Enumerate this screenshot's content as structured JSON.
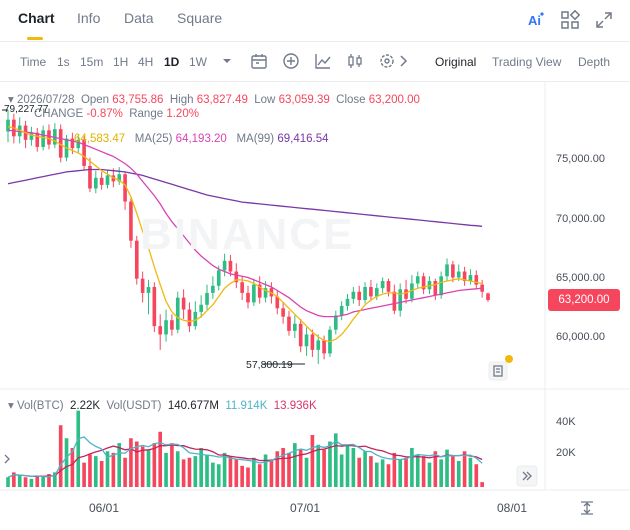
{
  "tabs": [
    {
      "label": "Chart",
      "active": true
    },
    {
      "label": "Info",
      "active": false
    },
    {
      "label": "Data",
      "active": false
    },
    {
      "label": "Square",
      "active": false
    }
  ],
  "top_icons": [
    "ai-icon",
    "grid-icon",
    "expand-icon"
  ],
  "toolbar": {
    "timeframes": [
      {
        "label": "Time",
        "active": false
      },
      {
        "label": "1s",
        "active": false
      },
      {
        "label": "15m",
        "active": false
      },
      {
        "label": "1H",
        "active": false
      },
      {
        "label": "4H",
        "active": false
      },
      {
        "label": "1D",
        "active": true
      },
      {
        "label": "1W",
        "active": false
      }
    ],
    "views": [
      {
        "label": "Original",
        "active": true
      },
      {
        "label": "Trading View",
        "active": false
      },
      {
        "label": "Depth",
        "active": false
      }
    ]
  },
  "ohlc": {
    "date": "2026/07/28",
    "open_label": "Open",
    "open": "63,755.86",
    "high_label": "High",
    "high": "63,827.49",
    "low_label": "Low",
    "low": "63,059.39",
    "close_label": "Close",
    "close": "63,200.00",
    "change_label": "CHANGE",
    "change": "-0.87%",
    "range_label": "Range",
    "range": "1.20%"
  },
  "ma": {
    "ma7_value": "64,583.47",
    "ma25_label": "MA(25)",
    "ma25_value": "64,193.20",
    "ma99_label": "MA(99)",
    "ma99_value": "69,416.54"
  },
  "price_axis": [
    "75,000.00",
    "70,000.00",
    "65,000.00",
    "60,000.00"
  ],
  "current_price": "63,200.00",
  "annotations": {
    "high_mark": "79,227.77",
    "low_mark": "57,800.19"
  },
  "watermark": "BINANCE",
  "volume": {
    "label_btc": "Vol(BTC)",
    "btc": "2.22K",
    "label_usdt": "Vol(USDT)",
    "usdt": "140.677M",
    "ma1": "11.914K",
    "ma2": "13.936K",
    "axis": [
      "40K",
      "20K"
    ]
  },
  "dates": [
    "06/01",
    "07/01",
    "08/01"
  ],
  "colors": {
    "up": "#2ebd85",
    "down": "#f6465d",
    "accent": "#f0b90b",
    "ma7": "#f0b90b",
    "ma25": "#d943b4",
    "ma99": "#7a37a6",
    "vol_ma1": "#4fb4c8",
    "vol_ma2": "#c2255c"
  },
  "chart_data": {
    "type": "candlestick",
    "candles": [
      {
        "o": 77400,
        "c": 78400,
        "h": 79230,
        "l": 76500
      },
      {
        "o": 78400,
        "c": 77000,
        "h": 78900,
        "l": 76400
      },
      {
        "o": 77000,
        "c": 77900,
        "h": 78600,
        "l": 76400
      },
      {
        "o": 77900,
        "c": 76700,
        "h": 78300,
        "l": 76000
      },
      {
        "o": 76700,
        "c": 77300,
        "h": 77800,
        "l": 76200
      },
      {
        "o": 77300,
        "c": 76100,
        "h": 77700,
        "l": 75700
      },
      {
        "o": 76100,
        "c": 77500,
        "h": 77900,
        "l": 75800
      },
      {
        "o": 77500,
        "c": 76300,
        "h": 78000,
        "l": 75900
      },
      {
        "o": 76300,
        "c": 77600,
        "h": 78100,
        "l": 76000
      },
      {
        "o": 77600,
        "c": 75200,
        "h": 78000,
        "l": 74800
      },
      {
        "o": 75200,
        "c": 76800,
        "h": 77100,
        "l": 74900
      },
      {
        "o": 76800,
        "c": 76000,
        "h": 77300,
        "l": 75500
      },
      {
        "o": 76000,
        "c": 76700,
        "h": 77100,
        "l": 75600
      },
      {
        "o": 76700,
        "c": 74500,
        "h": 77000,
        "l": 74200
      },
      {
        "o": 74500,
        "c": 72600,
        "h": 75200,
        "l": 72300
      },
      {
        "o": 72600,
        "c": 73500,
        "h": 74100,
        "l": 72200
      },
      {
        "o": 73500,
        "c": 72900,
        "h": 74000,
        "l": 72500
      },
      {
        "o": 72900,
        "c": 73700,
        "h": 74200,
        "l": 72600
      },
      {
        "o": 73700,
        "c": 73200,
        "h": 74300,
        "l": 72700
      },
      {
        "o": 73200,
        "c": 73800,
        "h": 74400,
        "l": 72900
      },
      {
        "o": 73800,
        "c": 71500,
        "h": 74000,
        "l": 70800
      },
      {
        "o": 71500,
        "c": 68200,
        "h": 71800,
        "l": 67600
      },
      {
        "o": 68200,
        "c": 65000,
        "h": 68600,
        "l": 64500
      },
      {
        "o": 65000,
        "c": 63800,
        "h": 65600,
        "l": 63000
      },
      {
        "o": 63800,
        "c": 64300,
        "h": 64900,
        "l": 62000
      },
      {
        "o": 64300,
        "c": 61000,
        "h": 64700,
        "l": 60500
      },
      {
        "o": 61000,
        "c": 60300,
        "h": 62000,
        "l": 59000
      },
      {
        "o": 60300,
        "c": 61500,
        "h": 62400,
        "l": 59700
      },
      {
        "o": 61500,
        "c": 60700,
        "h": 62000,
        "l": 60200
      },
      {
        "o": 60700,
        "c": 63400,
        "h": 63900,
        "l": 60400
      },
      {
        "o": 63400,
        "c": 62400,
        "h": 64100,
        "l": 61600
      },
      {
        "o": 62400,
        "c": 61000,
        "h": 63000,
        "l": 60500
      },
      {
        "o": 61000,
        "c": 62200,
        "h": 63100,
        "l": 60700
      },
      {
        "o": 62200,
        "c": 62800,
        "h": 63600,
        "l": 61700
      },
      {
        "o": 62800,
        "c": 63800,
        "h": 64500,
        "l": 62400
      },
      {
        "o": 63800,
        "c": 64400,
        "h": 65200,
        "l": 63300
      },
      {
        "o": 64400,
        "c": 65700,
        "h": 66100,
        "l": 64000
      },
      {
        "o": 65700,
        "c": 66500,
        "h": 67100,
        "l": 65200
      },
      {
        "o": 66500,
        "c": 65600,
        "h": 67000,
        "l": 65200
      },
      {
        "o": 65600,
        "c": 64700,
        "h": 66300,
        "l": 64200
      },
      {
        "o": 64700,
        "c": 63800,
        "h": 65200,
        "l": 63200
      },
      {
        "o": 63800,
        "c": 63000,
        "h": 64400,
        "l": 62500
      },
      {
        "o": 63000,
        "c": 64500,
        "h": 65000,
        "l": 62700
      },
      {
        "o": 64500,
        "c": 63400,
        "h": 65200,
        "l": 62900
      },
      {
        "o": 63400,
        "c": 64200,
        "h": 64800,
        "l": 63000
      },
      {
        "o": 64200,
        "c": 63500,
        "h": 64700,
        "l": 62900
      },
      {
        "o": 63500,
        "c": 62500,
        "h": 64000,
        "l": 62000
      },
      {
        "o": 62500,
        "c": 61800,
        "h": 63000,
        "l": 61200
      },
      {
        "o": 61800,
        "c": 60600,
        "h": 62300,
        "l": 60200
      },
      {
        "o": 60600,
        "c": 61200,
        "h": 61900,
        "l": 60000
      },
      {
        "o": 61200,
        "c": 59300,
        "h": 61600,
        "l": 58800
      },
      {
        "o": 59300,
        "c": 60300,
        "h": 60900,
        "l": 58500
      },
      {
        "o": 60300,
        "c": 59000,
        "h": 60700,
        "l": 58400
      },
      {
        "o": 59000,
        "c": 59800,
        "h": 60300,
        "l": 57800
      },
      {
        "o": 59800,
        "c": 58700,
        "h": 60200,
        "l": 58200
      },
      {
        "o": 58700,
        "c": 60700,
        "h": 61000,
        "l": 58400
      },
      {
        "o": 60700,
        "c": 61900,
        "h": 62300,
        "l": 60300
      },
      {
        "o": 61900,
        "c": 62700,
        "h": 63100,
        "l": 61500
      },
      {
        "o": 62700,
        "c": 63300,
        "h": 63700,
        "l": 62300
      },
      {
        "o": 63300,
        "c": 63900,
        "h": 64300,
        "l": 62900
      },
      {
        "o": 63900,
        "c": 63200,
        "h": 64400,
        "l": 62700
      },
      {
        "o": 63200,
        "c": 64300,
        "h": 64700,
        "l": 62900
      },
      {
        "o": 64300,
        "c": 63500,
        "h": 64900,
        "l": 63100
      },
      {
        "o": 63500,
        "c": 64200,
        "h": 64600,
        "l": 63200
      },
      {
        "o": 64200,
        "c": 64800,
        "h": 65100,
        "l": 63800
      },
      {
        "o": 64800,
        "c": 63900,
        "h": 65000,
        "l": 63500
      },
      {
        "o": 63900,
        "c": 62300,
        "h": 64500,
        "l": 62000
      },
      {
        "o": 62300,
        "c": 64100,
        "h": 64600,
        "l": 61800
      },
      {
        "o": 64100,
        "c": 63300,
        "h": 64900,
        "l": 62900
      },
      {
        "o": 63300,
        "c": 64600,
        "h": 65300,
        "l": 63000
      },
      {
        "o": 64600,
        "c": 65200,
        "h": 65600,
        "l": 64200
      },
      {
        "o": 65200,
        "c": 64100,
        "h": 65500,
        "l": 63700
      },
      {
        "o": 64100,
        "c": 64800,
        "h": 65200,
        "l": 63700
      },
      {
        "o": 64800,
        "c": 63600,
        "h": 65000,
        "l": 63200
      },
      {
        "o": 63600,
        "c": 65200,
        "h": 65600,
        "l": 63300
      },
      {
        "o": 65200,
        "c": 66200,
        "h": 66700,
        "l": 64800
      },
      {
        "o": 66200,
        "c": 65100,
        "h": 66500,
        "l": 64700
      },
      {
        "o": 65100,
        "c": 65600,
        "h": 66200,
        "l": 64800
      },
      {
        "o": 65600,
        "c": 64800,
        "h": 66000,
        "l": 64400
      },
      {
        "o": 64800,
        "c": 65300,
        "h": 65800,
        "l": 64500
      },
      {
        "o": 65300,
        "c": 64500,
        "h": 65700,
        "l": 64100
      },
      {
        "o": 64500,
        "c": 63900,
        "h": 64900,
        "l": 63400
      },
      {
        "o": 63756,
        "c": 63200,
        "h": 63827,
        "l": 63059
      }
    ],
    "ma7": [
      77800,
      77700,
      77500,
      77300,
      77100,
      77000,
      76900,
      76800,
      76600,
      76300,
      76000,
      75800,
      75600,
      75300,
      74900,
      74500,
      74100,
      73800,
      73500,
      73300,
      72900,
      71900,
      70500,
      69000,
      67600,
      66000,
      64500,
      63100,
      62200,
      61700,
      61500,
      61400,
      61500,
      61800,
      62300,
      62800,
      63500,
      64200,
      64600,
      64900,
      64900,
      64800,
      64600,
      64300,
      64000,
      63800,
      63500,
      63000,
      62500,
      62000,
      61500,
      61000,
      60500,
      60100,
      59800,
      59700,
      59900,
      60300,
      60900,
      61600,
      62200,
      62800,
      63200,
      63500,
      63700,
      63800,
      63800,
      63700,
      63800,
      64000,
      64200,
      64300,
      64400,
      64500,
      64700,
      64800,
      64900,
      65000,
      64900,
      64800,
      64700,
      64583
    ],
    "ma25": [
      77500,
      77450,
      77400,
      77350,
      77300,
      77200,
      77100,
      77000,
      76900,
      76800,
      76700,
      76600,
      76500,
      76300,
      76100,
      75900,
      75700,
      75500,
      75300,
      75000,
      74700,
      74300,
      73800,
      73200,
      72600,
      72000,
      71300,
      70500,
      69800,
      69200,
      68600,
      68000,
      67400,
      66900,
      66500,
      66100,
      65800,
      65600,
      65400,
      65300,
      65200,
      65100,
      64900,
      64700,
      64500,
      64300,
      64000,
      63700,
      63400,
      63000,
      62600,
      62300,
      62100,
      61900,
      61800,
      61800,
      61800,
      61900,
      62000,
      62200,
      62300,
      62400,
      62500,
      62600,
      62700,
      62800,
      62900,
      63000,
      63100,
      63200,
      63300,
      63400,
      63500,
      63600,
      63700,
      63800,
      63900,
      64000,
      64050,
      64100,
      64150,
      64193
    ],
    "ma99": [
      73000,
      73100,
      73200,
      73300,
      73400,
      73500,
      73600,
      73700,
      73800,
      73900,
      74000,
      74050,
      74100,
      74150,
      74200,
      74200,
      74200,
      74150,
      74100,
      74050,
      74000,
      73900,
      73800,
      73700,
      73550,
      73400,
      73250,
      73100,
      72950,
      72800,
      72650,
      72500,
      72350,
      72200,
      72050,
      71950,
      71850,
      71750,
      71650,
      71550,
      71450,
      71400,
      71350,
      71300,
      71250,
      71200,
      71150,
      71100,
      71050,
      71000,
      70950,
      70900,
      70850,
      70800,
      70750,
      70700,
      70650,
      70600,
      70550,
      70500,
      70450,
      70400,
      70350,
      70300,
      70250,
      70200,
      70150,
      70100,
      70050,
      70000,
      69950,
      69900,
      69850,
      69800,
      69750,
      69700,
      69650,
      69600,
      69550,
      69500,
      69460,
      69417
    ],
    "volume": [
      6,
      9,
      7,
      6,
      5,
      7,
      6,
      8,
      9,
      38,
      30,
      24,
      47,
      15,
      20,
      19,
      16,
      22,
      21,
      27,
      18,
      30,
      28,
      25,
      23,
      27,
      34,
      21,
      27,
      22,
      17,
      18,
      19,
      24,
      20,
      15,
      14,
      21,
      19,
      17,
      13,
      12,
      18,
      14,
      20,
      17,
      22,
      24,
      21,
      27,
      23,
      18,
      32,
      26,
      23,
      28,
      33,
      20,
      26,
      24,
      18,
      22,
      19,
      15,
      17,
      14,
      21,
      17,
      18,
      24,
      20,
      19,
      15,
      22,
      17,
      23,
      19,
      16,
      22,
      18,
      14,
      3
    ],
    "ylim": [
      56000,
      80000
    ],
    "vol_axis": [
      20,
      40
    ]
  }
}
